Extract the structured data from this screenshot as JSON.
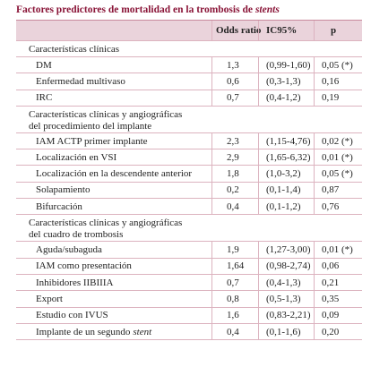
{
  "title": [
    "Factores predictores de mortalidad en la trombosis de",
    "stents"
  ],
  "table": {
    "header": [
      "Odds ratio",
      "IC95%",
      "p"
    ],
    "rows": [
      {
        "section": [
          "Características clínicas"
        ]
      },
      {
        "label": "DM",
        "cells": [
          "1,3",
          "(0,99-1,60)",
          "0,05 (*)"
        ]
      },
      {
        "label": "Enfermedad multivaso",
        "cells": [
          "0,6",
          "(0,3-1,3)",
          "0,16"
        ]
      },
      {
        "label": "IRC",
        "cells": [
          "0,7",
          "(0,4-1,2)",
          "0,19"
        ]
      },
      {
        "section": [
          "Características clínicas y angiográficas",
          "del procedimiento del implante"
        ]
      },
      {
        "label": "IAM ACTP primer implante",
        "cells": [
          "2,3",
          "(1,15-4,76)",
          "0,02 (*)"
        ]
      },
      {
        "label": "Localización en VSI",
        "cells": [
          "2,9",
          "(1,65-6,32)",
          "0,01 (*)"
        ]
      },
      {
        "label": "Localización en la descendente anterior",
        "cells": [
          "1,8",
          "(1,0-3,2)",
          "0,05 (*)"
        ]
      },
      {
        "label": "Solapamiento",
        "cells": [
          "0,2",
          "(0,1-1,4)",
          "0,87"
        ]
      },
      {
        "label": "Bifurcación",
        "cells": [
          "0,4",
          "(0,1-1,2)",
          "0,76"
        ]
      },
      {
        "section": [
          "Características clínicas y angiográficas",
          "del cuadro de trombosis"
        ]
      },
      {
        "label": "Aguda/subaguda",
        "cells": [
          "1,9",
          "(1,27-3,00)",
          "0,01 (*)"
        ]
      },
      {
        "label": "IAM como presentación",
        "cells": [
          "1,64",
          "(0,98-2,74)",
          "0,06"
        ]
      },
      {
        "label": "Inhibidores IIBIIIA",
        "cells": [
          "0,7",
          "(0,4-1,3)",
          "0,21"
        ]
      },
      {
        "label": "Export",
        "cells": [
          "0,8",
          "(0,5-1,3)",
          "0,35"
        ]
      },
      {
        "label": "Estudio con IVUS",
        "cells": [
          "1,6",
          "(0,83-2,21)",
          "0,09"
        ]
      },
      {
        "label": "Implante de un segundo",
        "label_em": "stent",
        "cells": [
          "0,4",
          "(0,1-1,6)",
          "0,20"
        ]
      }
    ]
  }
}
